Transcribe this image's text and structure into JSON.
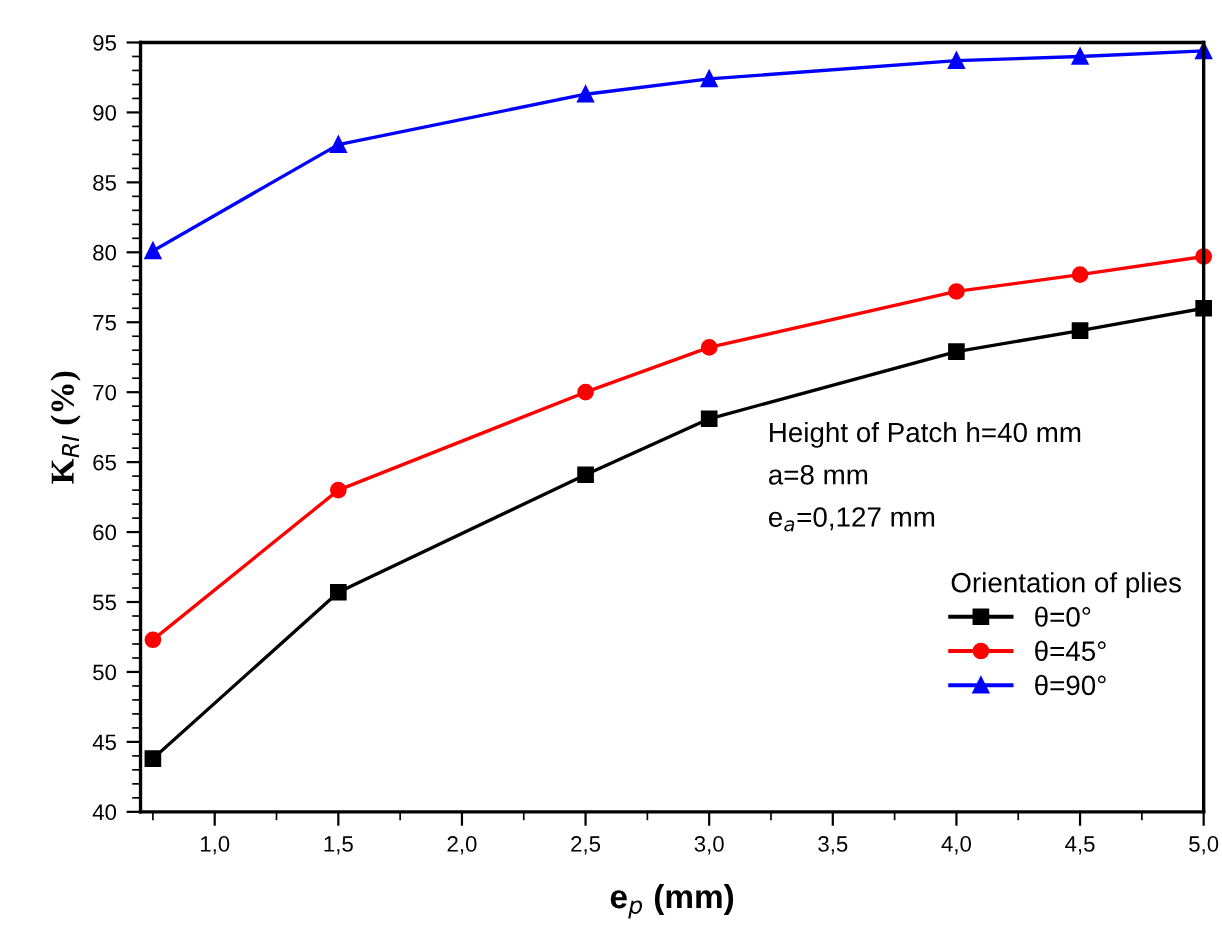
{
  "chart_data": {
    "type": "line",
    "xlabel": "e$_{p}$ (mm)",
    "ylabel": "K$_{RI}$ (%)",
    "x": [
      0.75,
      1.5,
      2.5,
      3.0,
      4.0,
      4.5,
      5.0
    ],
    "series": [
      {
        "name": "θ=0°",
        "color": "#000000",
        "marker": "square",
        "values": [
          43.8,
          55.7,
          64.1,
          68.1,
          72.9,
          74.4,
          76.0
        ]
      },
      {
        "name": "θ=45°",
        "color": "#ff0000",
        "marker": "circle",
        "values": [
          52.3,
          63.0,
          70.0,
          73.2,
          77.2,
          78.4,
          79.7
        ]
      },
      {
        "name": "θ=90°",
        "color": "#0000ff",
        "marker": "triangle",
        "values": [
          80.1,
          87.7,
          91.3,
          92.4,
          93.7,
          94.0,
          94.4
        ]
      }
    ],
    "xlim": [
      0.7,
      5.0
    ],
    "xticks": [
      {
        "value": 1.0,
        "label": "1,0"
      },
      {
        "value": 1.5,
        "label": "1,5"
      },
      {
        "value": 2.0,
        "label": "2,0"
      },
      {
        "value": 2.5,
        "label": "2,5"
      },
      {
        "value": 3.0,
        "label": "3,0"
      },
      {
        "value": 3.5,
        "label": "3,5"
      },
      {
        "value": 4.0,
        "label": "4,0"
      },
      {
        "value": 4.5,
        "label": "4,5"
      },
      {
        "value": 5.0,
        "label": "5,0"
      }
    ],
    "ylim": [
      40,
      95
    ],
    "yticks": [
      40,
      45,
      50,
      55,
      60,
      65,
      70,
      75,
      80,
      85,
      90,
      95
    ],
    "annotations": [
      "Height of Patch h=40 mm",
      "a=8 mm",
      "e$_{a}$=0,127 mm"
    ],
    "legend_title": "Orientation of plies",
    "legend": "bottom right",
    "grid": false
  }
}
